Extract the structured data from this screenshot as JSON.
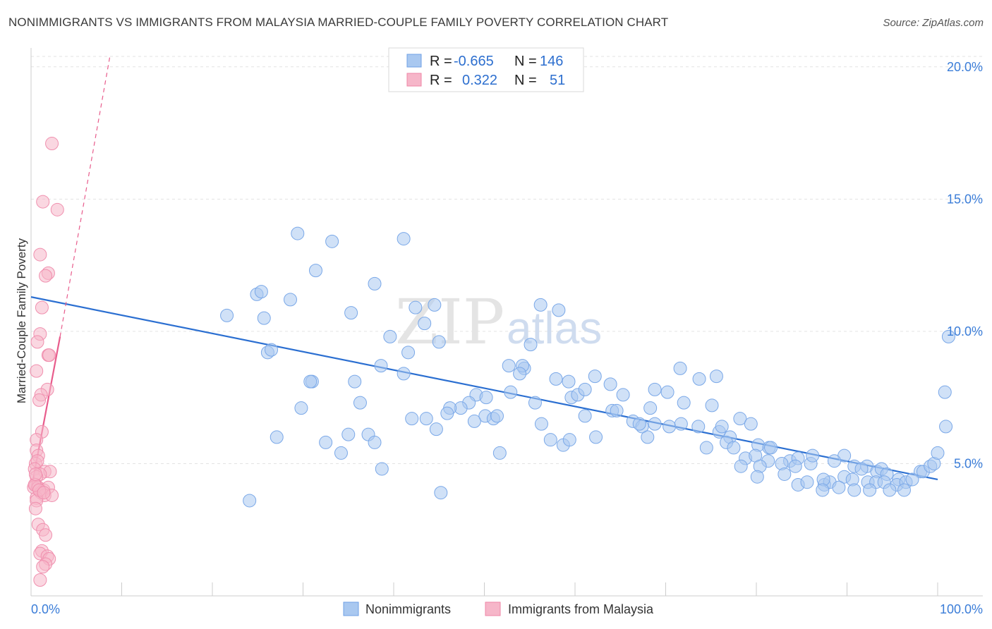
{
  "title": "NONIMMIGRANTS VS IMMIGRANTS FROM MALAYSIA MARRIED-COUPLE FAMILY POVERTY CORRELATION CHART",
  "source": "Source: ZipAtlas.com",
  "watermark": {
    "zip": "ZIP",
    "atlas": "atlas"
  },
  "legend_box": {
    "rows": [
      {
        "r_label": "R =",
        "r_value": "-0.665",
        "n_label": "N =",
        "n_value": "146",
        "color": "#a9c8f0"
      },
      {
        "r_label": "R =",
        "r_value": "0.322",
        "n_label": "N =",
        "n_value": "51",
        "color": "#f6b6c9"
      }
    ]
  },
  "bottom_legend": [
    "Nonimmigrants",
    "Immigrants from Malaysia"
  ],
  "chart_data": {
    "type": "scatter",
    "title": "NONIMMIGRANTS VS IMMIGRANTS FROM MALAYSIA MARRIED-COUPLE FAMILY POVERTY CORRELATION CHART",
    "xlabel": "",
    "ylabel": "Married-Couple Family Poverty",
    "xlim": [
      0,
      100
    ],
    "ylim": [
      0,
      20.5
    ],
    "x_tick_labels": [
      "0.0%",
      "100.0%"
    ],
    "y_ticks": [
      5,
      10,
      15,
      20
    ],
    "y_tick_labels": [
      "5.0%",
      "10.0%",
      "15.0%",
      "20.0%"
    ],
    "grid": true,
    "legend_position": "top-center",
    "colors": {
      "nonimmigrants": "#6fa0e6",
      "malaysia": "#ef86a6",
      "blue_line": "#2b6fd1",
      "pink_line": "#e85c8c"
    },
    "series": [
      {
        "name": "Nonimmigrants",
        "points": [
          [
            29.4,
            13.7
          ],
          [
            33.2,
            13.4
          ],
          [
            41.1,
            13.5
          ],
          [
            31.4,
            12.3
          ],
          [
            24.9,
            11.4
          ],
          [
            25.4,
            11.5
          ],
          [
            28.6,
            11.2
          ],
          [
            37.9,
            11.8
          ],
          [
            21.6,
            10.6
          ],
          [
            25.7,
            10.5
          ],
          [
            35.3,
            10.7
          ],
          [
            42.4,
            10.9
          ],
          [
            44.5,
            11.0
          ],
          [
            56.2,
            11.0
          ],
          [
            58.2,
            10.8
          ],
          [
            43.4,
            10.3
          ],
          [
            39.6,
            9.8
          ],
          [
            45.0,
            9.6
          ],
          [
            41.6,
            9.2
          ],
          [
            26.1,
            9.2
          ],
          [
            26.5,
            9.3
          ],
          [
            55.1,
            9.5
          ],
          [
            38.6,
            8.7
          ],
          [
            41.1,
            8.4
          ],
          [
            31.0,
            8.1
          ],
          [
            30.8,
            8.1
          ],
          [
            35.7,
            8.1
          ],
          [
            52.7,
            8.7
          ],
          [
            54.4,
            8.6
          ],
          [
            54.2,
            8.7
          ],
          [
            53.9,
            8.4
          ],
          [
            62.2,
            8.3
          ],
          [
            71.6,
            8.6
          ],
          [
            73.7,
            8.2
          ],
          [
            75.6,
            8.3
          ],
          [
            59.3,
            8.1
          ],
          [
            57.9,
            8.2
          ],
          [
            49.1,
            7.6
          ],
          [
            50.2,
            7.5
          ],
          [
            52.9,
            7.7
          ],
          [
            59.6,
            7.5
          ],
          [
            60.3,
            7.6
          ],
          [
            63.9,
            8.0
          ],
          [
            61.1,
            7.8
          ],
          [
            65.3,
            7.6
          ],
          [
            68.8,
            7.8
          ],
          [
            70.2,
            7.7
          ],
          [
            48.3,
            7.3
          ],
          [
            47.4,
            7.1
          ],
          [
            36.3,
            7.3
          ],
          [
            29.8,
            7.1
          ],
          [
            46.2,
            7.1
          ],
          [
            55.6,
            7.3
          ],
          [
            64.1,
            7.0
          ],
          [
            64.6,
            7.0
          ],
          [
            68.3,
            7.1
          ],
          [
            72.0,
            7.3
          ],
          [
            75.1,
            7.2
          ],
          [
            50.1,
            6.8
          ],
          [
            48.9,
            6.6
          ],
          [
            51.0,
            6.7
          ],
          [
            51.4,
            6.8
          ],
          [
            45.9,
            6.9
          ],
          [
            43.6,
            6.7
          ],
          [
            42.0,
            6.7
          ],
          [
            56.3,
            6.5
          ],
          [
            61.1,
            6.8
          ],
          [
            66.4,
            6.6
          ],
          [
            67.4,
            6.4
          ],
          [
            67.1,
            6.5
          ],
          [
            68.8,
            6.5
          ],
          [
            70.4,
            6.4
          ],
          [
            71.7,
            6.5
          ],
          [
            73.6,
            6.4
          ],
          [
            75.9,
            6.2
          ],
          [
            77.1,
            6.0
          ],
          [
            78.2,
            6.7
          ],
          [
            79.4,
            6.5
          ],
          [
            27.1,
            6.0
          ],
          [
            32.5,
            5.8
          ],
          [
            35.0,
            6.1
          ],
          [
            37.2,
            6.1
          ],
          [
            37.9,
            5.8
          ],
          [
            44.7,
            6.3
          ],
          [
            57.3,
            5.9
          ],
          [
            58.7,
            5.7
          ],
          [
            59.4,
            5.9
          ],
          [
            62.3,
            6.0
          ],
          [
            68.0,
            6.0
          ],
          [
            76.2,
            6.4
          ],
          [
            76.7,
            5.8
          ],
          [
            74.5,
            5.6
          ],
          [
            77.5,
            5.6
          ],
          [
            80.2,
            5.7
          ],
          [
            81.4,
            5.6
          ],
          [
            81.6,
            5.6
          ],
          [
            34.2,
            5.4
          ],
          [
            51.7,
            5.4
          ],
          [
            78.8,
            5.2
          ],
          [
            79.9,
            5.3
          ],
          [
            81.3,
            5.1
          ],
          [
            83.7,
            5.1
          ],
          [
            84.6,
            5.2
          ],
          [
            86.0,
            5.0
          ],
          [
            86.2,
            5.3
          ],
          [
            89.7,
            5.3
          ],
          [
            88.6,
            5.1
          ],
          [
            90.8,
            4.9
          ],
          [
            92.2,
            4.9
          ],
          [
            78.3,
            4.9
          ],
          [
            80.4,
            4.9
          ],
          [
            82.8,
            5.0
          ],
          [
            84.3,
            4.9
          ],
          [
            38.7,
            4.8
          ],
          [
            91.6,
            4.8
          ],
          [
            93.3,
            4.7
          ],
          [
            93.8,
            4.8
          ],
          [
            94.4,
            4.6
          ],
          [
            95.7,
            4.4
          ],
          [
            98.1,
            4.7
          ],
          [
            98.4,
            4.7
          ],
          [
            99.2,
            4.9
          ],
          [
            99.6,
            5.0
          ],
          [
            100.0,
            5.4
          ],
          [
            80.1,
            4.5
          ],
          [
            83.1,
            4.6
          ],
          [
            84.6,
            4.2
          ],
          [
            85.6,
            4.3
          ],
          [
            87.5,
            4.2
          ],
          [
            88.1,
            4.3
          ],
          [
            89.7,
            4.5
          ],
          [
            87.4,
            4.4
          ],
          [
            90.6,
            4.4
          ],
          [
            92.3,
            4.3
          ],
          [
            93.2,
            4.3
          ],
          [
            94.1,
            4.3
          ],
          [
            95.5,
            4.2
          ],
          [
            96.5,
            4.3
          ],
          [
            97.2,
            4.4
          ],
          [
            87.3,
            4.0
          ],
          [
            89.1,
            4.1
          ],
          [
            90.8,
            4.0
          ],
          [
            92.5,
            4.0
          ],
          [
            94.7,
            4.0
          ],
          [
            96.3,
            4.0
          ],
          [
            45.2,
            3.9
          ],
          [
            24.1,
            3.6
          ],
          [
            100.8,
            7.7
          ],
          [
            100.9,
            6.4
          ],
          [
            101.2,
            9.8
          ]
        ]
      },
      {
        "name": "Immigrants from Malaysia",
        "points": [
          [
            2.3,
            17.1
          ],
          [
            1.3,
            14.9
          ],
          [
            2.9,
            14.6
          ],
          [
            1.0,
            12.9
          ],
          [
            1.9,
            12.2
          ],
          [
            1.6,
            12.1
          ],
          [
            1.2,
            10.9
          ],
          [
            1.0,
            9.9
          ],
          [
            0.7,
            9.6
          ],
          [
            1.9,
            9.1
          ],
          [
            2.0,
            9.1
          ],
          [
            0.6,
            8.5
          ],
          [
            1.8,
            7.8
          ],
          [
            1.1,
            7.6
          ],
          [
            0.9,
            7.4
          ],
          [
            1.2,
            6.2
          ],
          [
            0.6,
            5.9
          ],
          [
            0.6,
            5.5
          ],
          [
            0.8,
            5.3
          ],
          [
            0.5,
            5.0
          ],
          [
            0.7,
            5.1
          ],
          [
            0.4,
            4.8
          ],
          [
            1.5,
            4.7
          ],
          [
            2.1,
            4.7
          ],
          [
            1.0,
            4.6
          ],
          [
            0.6,
            4.5
          ],
          [
            0.5,
            4.2
          ],
          [
            0.3,
            4.1
          ],
          [
            0.8,
            4.1
          ],
          [
            1.4,
            4.0
          ],
          [
            1.9,
            4.1
          ],
          [
            1.1,
            3.9
          ],
          [
            1.5,
            3.8
          ],
          [
            2.3,
            3.8
          ],
          [
            0.6,
            3.7
          ],
          [
            0.6,
            3.6
          ],
          [
            0.5,
            3.3
          ],
          [
            0.8,
            2.7
          ],
          [
            1.3,
            2.5
          ],
          [
            1.6,
            2.3
          ],
          [
            1.2,
            1.7
          ],
          [
            1.0,
            1.6
          ],
          [
            1.8,
            1.5
          ],
          [
            2.0,
            1.4
          ],
          [
            1.6,
            1.2
          ],
          [
            1.3,
            1.1
          ],
          [
            1.0,
            0.6
          ],
          [
            0.4,
            4.2
          ],
          [
            0.9,
            4.0
          ],
          [
            1.4,
            3.9
          ],
          [
            0.5,
            4.6
          ]
        ]
      }
    ],
    "trendlines": [
      {
        "series": "Nonimmigrants",
        "from": [
          0,
          11.3
        ],
        "to": [
          100,
          4.4
        ]
      },
      {
        "series": "Immigrants from Malaysia",
        "from": [
          0,
          4.0
        ],
        "to": [
          3.2,
          9.8
        ],
        "extends_dashed_to": [
          8.7,
          20.4
        ]
      }
    ]
  }
}
